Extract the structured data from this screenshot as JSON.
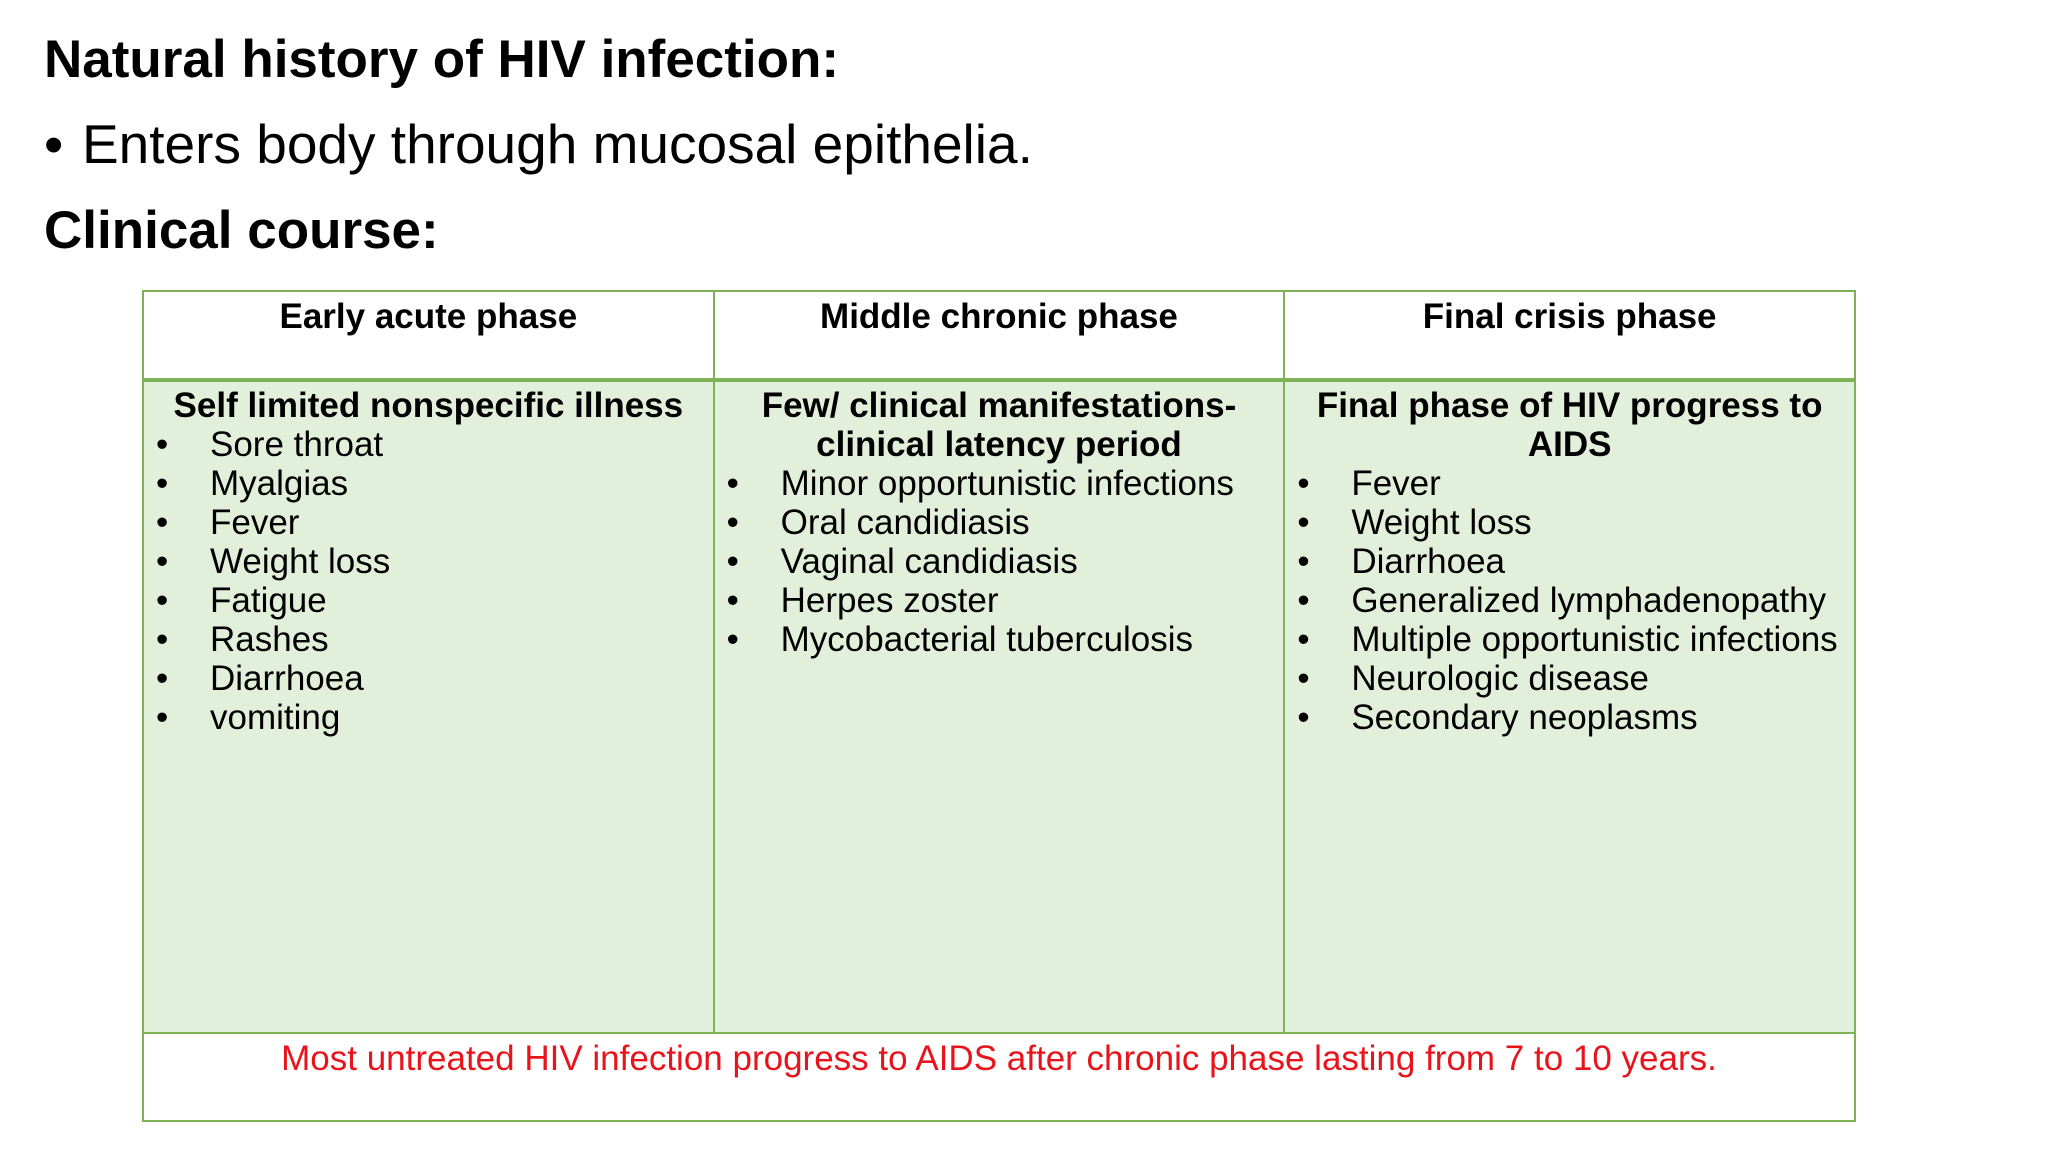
{
  "title": "Natural history of HIV infection:",
  "bullet": {
    "marker": "•",
    "text": "Enters body through mucosal epithelia."
  },
  "subtitle": "Clinical course:",
  "table": {
    "headers": [
      "Early acute phase",
      "Middle chronic phase",
      "Final crisis phase"
    ],
    "columns": [
      {
        "heading": "Self limited nonspecific illness",
        "items": [
          "Sore throat",
          "Myalgias",
          "Fever",
          "Weight loss",
          "Fatigue",
          "Rashes",
          "Diarrhoea",
          "vomiting"
        ]
      },
      {
        "heading": "Few/ clinical manifestations- clinical latency period",
        "items": [
          "Minor opportunistic infections",
          "Oral candidiasis",
          "Vaginal candidiasis",
          "Herpes zoster",
          "Mycobacterial tuberculosis"
        ]
      },
      {
        "heading": "Final phase of HIV progress to AIDS",
        "items": [
          "Fever",
          "Weight loss",
          "Diarrhoea",
          "Generalized lymphadenopathy",
          "Multiple opportunistic infections",
          "Neurologic disease",
          "Secondary neoplasms"
        ]
      }
    ],
    "footer": "Most untreated HIV infection progress to AIDS after chronic phase lasting from 7 to 10 years."
  },
  "colors": {
    "border": "#7fb256",
    "cell_fill": "#e2efda",
    "footer_text": "#e8141c"
  }
}
